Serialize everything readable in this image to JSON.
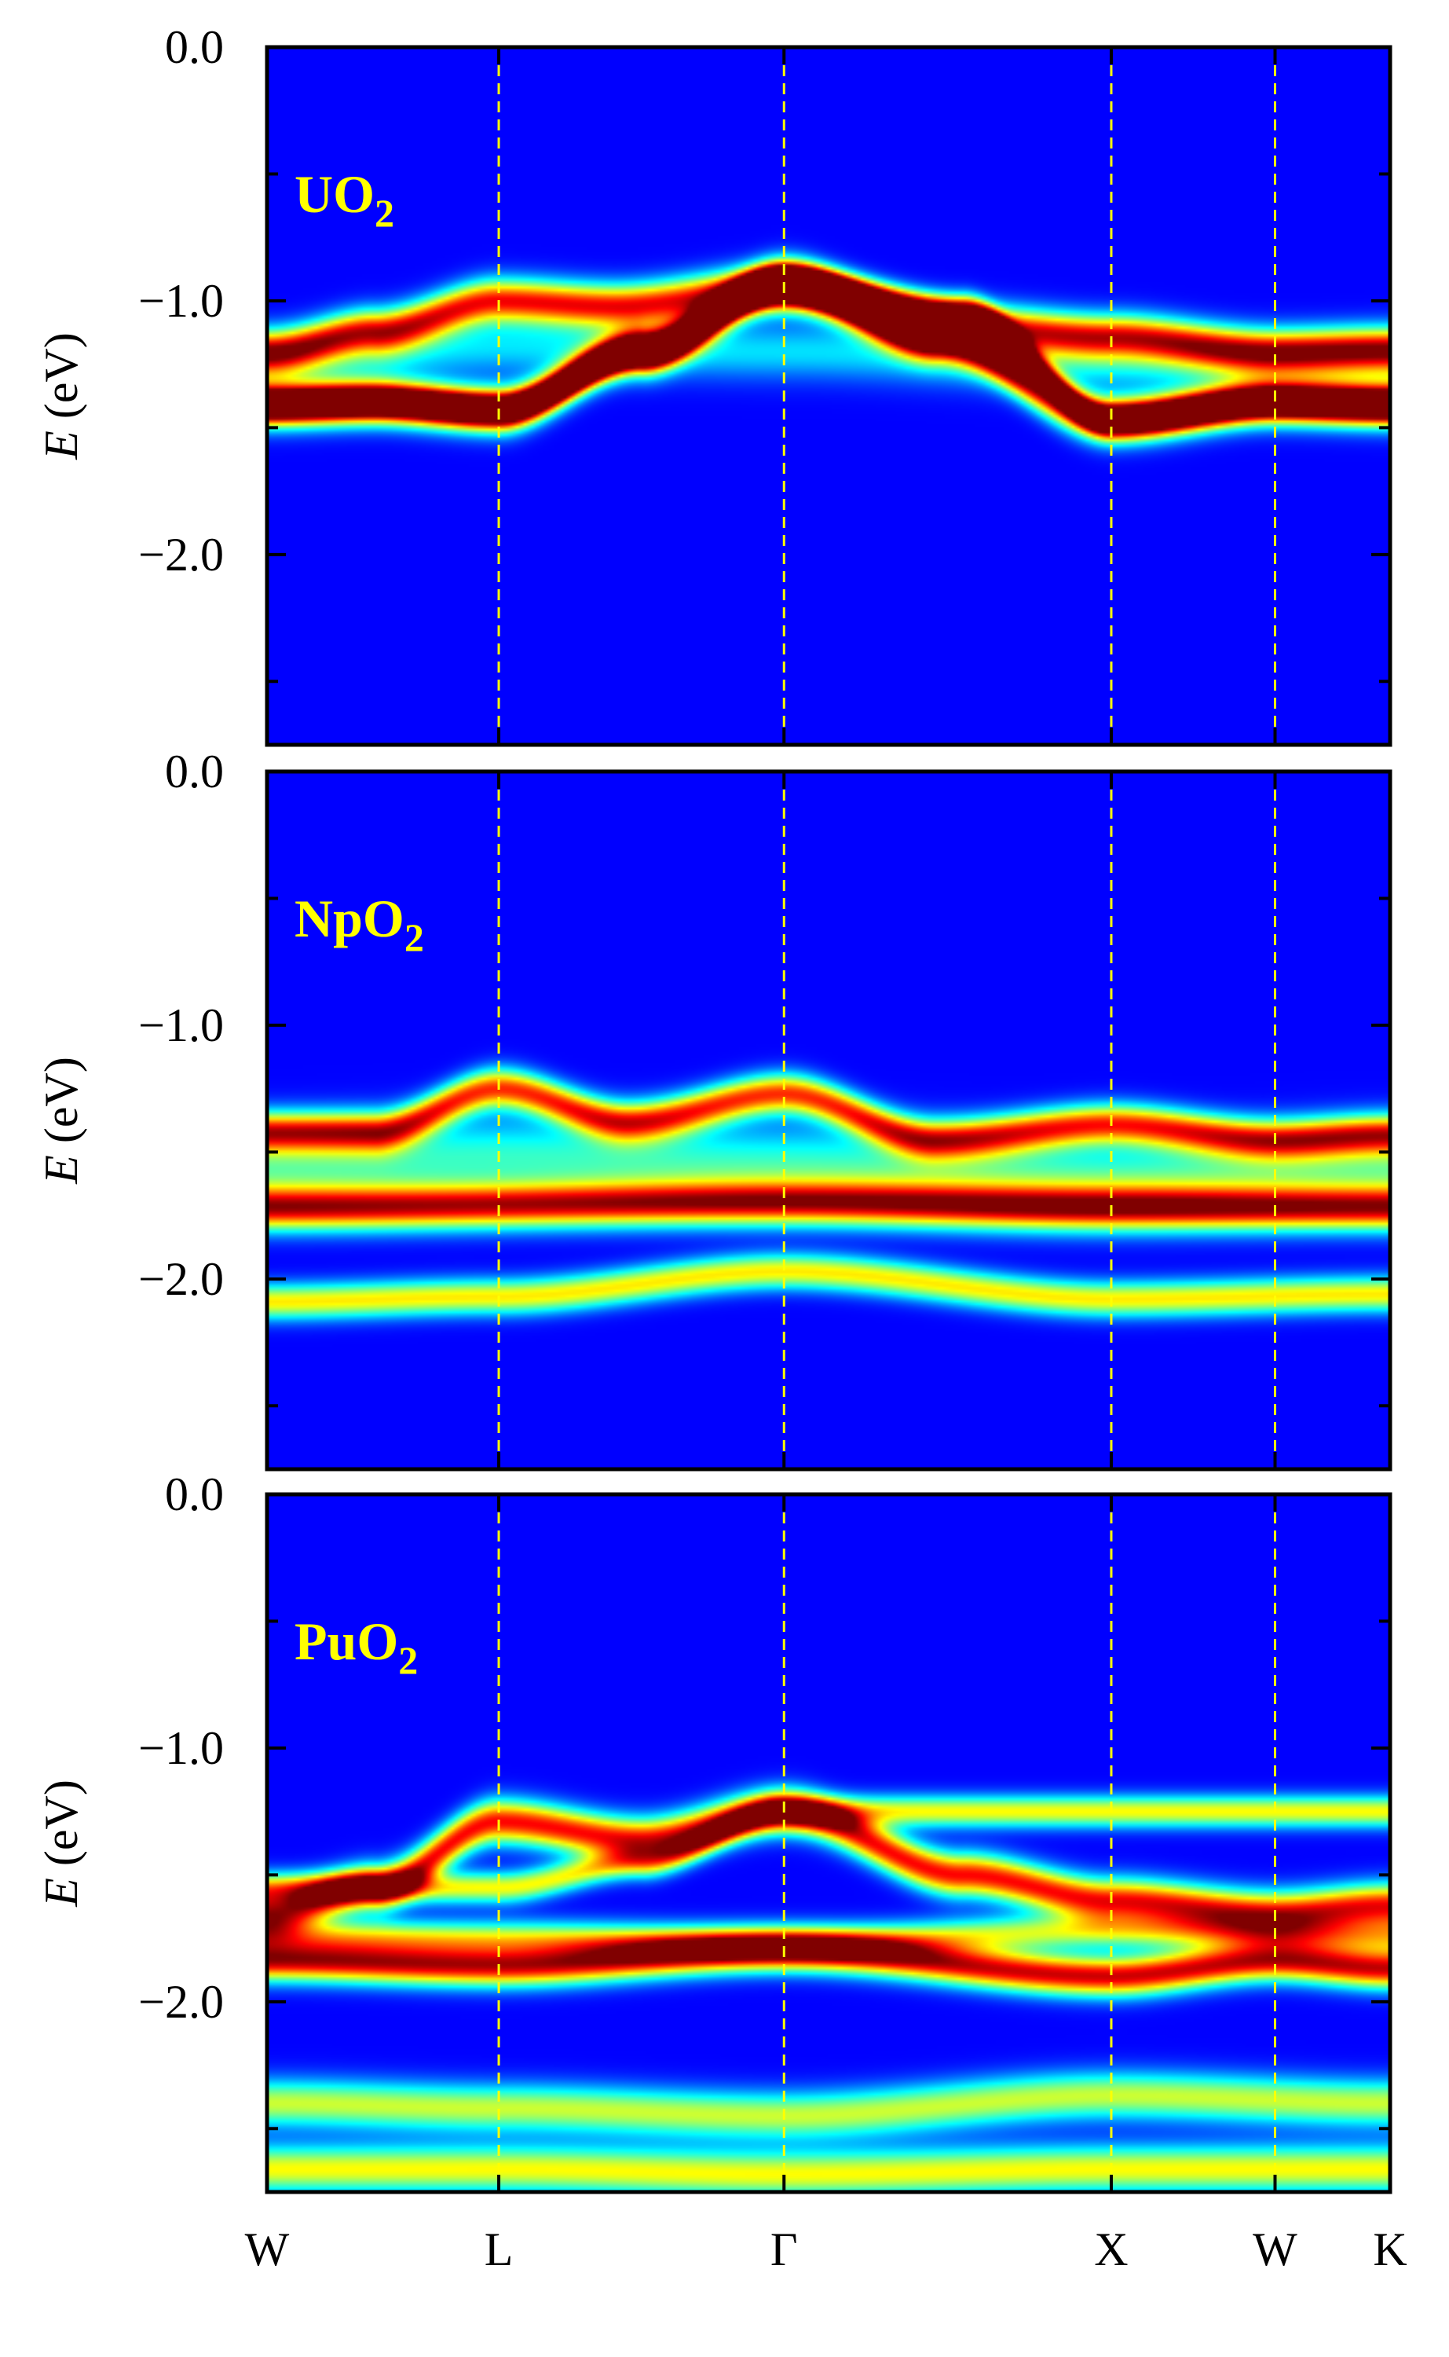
{
  "chart_data": {
    "type": "heatmap",
    "x_ticks": [
      "W",
      "L",
      "Γ",
      "X",
      "W",
      "K"
    ],
    "x_positions": [
      0,
      0.866,
      1.932,
      3.155,
      3.767,
      4.197
    ],
    "xlim": [
      0,
      4.197
    ],
    "colormap": "jet",
    "colors": {
      "background": "#0000ff",
      "divider": "#ffff00",
      "label": "#ffff00"
    },
    "panels": [
      {
        "material": "UO",
        "subscript": "2",
        "ylabel_italic": "E",
        "ylabel_unit": "(eV)",
        "ylim": [
          -2.75,
          0.0
        ],
        "yticks": [
          "0.0",
          "−1.0",
          "−2.0"
        ],
        "tick_values": [
          0.0,
          -1.0,
          -2.0
        ],
        "bands": [
          {
            "w": 0.22,
            "i": 0.75,
            "p": [
              [
                0,
                -1.2
              ],
              [
                0.4,
                -1.12
              ],
              [
                0.866,
                -1.0
              ],
              [
                1.3,
                -1.02
              ],
              [
                1.932,
                -0.95
              ],
              [
                2.55,
                -1.1
              ],
              [
                3.155,
                -1.14
              ],
              [
                3.767,
                -1.2
              ],
              [
                4.197,
                -1.19
              ]
            ]
          },
          {
            "w": 0.22,
            "i": 0.8,
            "p": [
              [
                0,
                -1.41
              ],
              [
                0.4,
                -1.4
              ],
              [
                0.866,
                -1.43
              ],
              [
                1.4,
                -1.2
              ],
              [
                1.932,
                -0.93
              ],
              [
                2.5,
                -1.15
              ],
              [
                3.155,
                -1.47
              ],
              [
                3.767,
                -1.4
              ],
              [
                4.197,
                -1.41
              ]
            ]
          },
          {
            "w": 0.16,
            "i": 0.7,
            "p": [
              [
                0,
                -1.41
              ],
              [
                0.4,
                -1.4
              ],
              [
                0.866,
                -1.43
              ],
              [
                1.4,
                -1.2
              ],
              [
                1.932,
                -0.93
              ],
              [
                2.6,
                -1.04
              ],
              [
                3.155,
                -1.47
              ],
              [
                3.767,
                -1.4
              ],
              [
                4.197,
                -1.41
              ]
            ]
          },
          {
            "w": 0.28,
            "i": 0.22,
            "p": [
              [
                0,
                -1.25
              ],
              [
                0.866,
                -1.18
              ],
              [
                1.932,
                -1.2
              ],
              [
                3.155,
                -1.25
              ],
              [
                4.197,
                -1.25
              ]
            ]
          }
        ]
      },
      {
        "material": "NpO",
        "subscript": "2",
        "ylabel_italic": "E",
        "ylabel_unit": "(eV)",
        "ylim": [
          -2.75,
          0.0
        ],
        "yticks": [
          "0.0",
          "−1.0",
          "−2.0"
        ],
        "tick_values": [
          0.0,
          -1.0,
          -2.0
        ],
        "bands": [
          {
            "w": 0.2,
            "i": 0.7,
            "p": [
              [
                0,
                -1.42
              ],
              [
                0.4,
                -1.42
              ],
              [
                0.866,
                -1.25
              ],
              [
                1.35,
                -1.38
              ],
              [
                1.932,
                -1.27
              ],
              [
                2.5,
                -1.45
              ],
              [
                3.155,
                -1.39
              ],
              [
                3.767,
                -1.45
              ],
              [
                4.197,
                -1.43
              ]
            ]
          },
          {
            "w": 0.22,
            "i": 0.78,
            "p": [
              [
                0,
                -1.72
              ],
              [
                1.932,
                -1.7
              ],
              [
                3.155,
                -1.72
              ],
              [
                4.197,
                -1.72
              ]
            ]
          },
          {
            "w": 0.4,
            "i": 0.3,
            "p": [
              [
                0,
                -1.55
              ],
              [
                0.866,
                -1.52
              ],
              [
                1.932,
                -1.55
              ],
              [
                3.155,
                -1.6
              ],
              [
                4.197,
                -1.56
              ]
            ]
          },
          {
            "w": 0.18,
            "i": 0.52,
            "p": [
              [
                0,
                -2.09
              ],
              [
                0.866,
                -2.07
              ],
              [
                1.932,
                -1.97
              ],
              [
                3.155,
                -2.08
              ],
              [
                4.197,
                -2.06
              ]
            ]
          }
        ]
      },
      {
        "material": "PuO",
        "subscript": "2",
        "ylabel_italic": "E",
        "ylabel_unit": "(eV)",
        "ylim": [
          -2.75,
          0.0
        ],
        "yticks": [
          "0.0",
          "−1.0",
          "−2.0"
        ],
        "tick_values": [
          0.0,
          -1.0,
          -2.0
        ],
        "bands": [
          {
            "w": 0.22,
            "i": 0.75,
            "p": [
              [
                0,
                -1.65
              ],
              [
                0.4,
                -1.55
              ],
              [
                0.866,
                -1.29
              ],
              [
                1.4,
                -1.36
              ],
              [
                1.932,
                -1.25
              ],
              [
                2.6,
                -1.5
              ],
              [
                3.155,
                -1.6
              ],
              [
                3.767,
                -1.65
              ],
              [
                4.197,
                -1.62
              ]
            ]
          },
          {
            "w": 0.2,
            "i": 0.8,
            "p": [
              [
                0,
                -1.84
              ],
              [
                0.866,
                -1.86
              ],
              [
                1.932,
                -1.8
              ],
              [
                3.155,
                -1.9
              ],
              [
                3.767,
                -1.84
              ],
              [
                4.197,
                -1.87
              ]
            ]
          },
          {
            "w": 0.18,
            "i": 0.45,
            "p": [
              [
                0,
                -1.74
              ],
              [
                0.866,
                -1.75
              ],
              [
                1.932,
                -1.77
              ],
              [
                3.155,
                -1.72
              ],
              [
                4.197,
                -1.74
              ]
            ]
          },
          {
            "w": 0.16,
            "i": 0.5,
            "p": [
              [
                0.866,
                -1.55
              ],
              [
                1.4,
                -1.45
              ],
              [
                1.932,
                -1.25
              ]
            ]
          },
          {
            "w": 0.24,
            "i": 0.45,
            "p": [
              [
                0,
                -2.4
              ],
              [
                0.866,
                -2.42
              ],
              [
                1.932,
                -2.45
              ],
              [
                3.155,
                -2.37
              ],
              [
                4.197,
                -2.4
              ]
            ]
          },
          {
            "w": 0.24,
            "i": 0.5,
            "p": [
              [
                0,
                -2.66
              ],
              [
                0.866,
                -2.66
              ],
              [
                1.932,
                -2.68
              ],
              [
                3.155,
                -2.66
              ],
              [
                4.197,
                -2.66
              ]
            ]
          }
        ]
      }
    ]
  }
}
